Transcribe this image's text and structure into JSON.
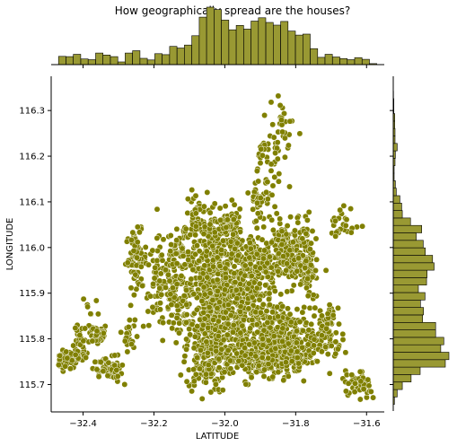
{
  "title": "How geographically spread are the houses?",
  "chart_data": {
    "type": "scatter",
    "title": "How geographically spread are the houses?",
    "xlabel": "LATITUDE",
    "ylabel": "LONGITUDE",
    "xlim": [
      -32.49,
      -31.55
    ],
    "ylim": [
      115.64,
      116.375
    ],
    "xticks": [
      -32.4,
      -32.2,
      -32.0,
      -31.8,
      -31.6
    ],
    "xtick_labels": [
      "−32.4",
      "−32.2",
      "−32.0",
      "−31.8",
      "−31.6"
    ],
    "yticks": [
      115.7,
      115.8,
      115.9,
      116.0,
      116.1,
      116.2,
      116.3
    ],
    "ytick_labels": [
      "115.7",
      "115.8",
      "115.9",
      "116.0",
      "116.1",
      "116.2",
      "116.3"
    ],
    "marker_color": "#808000",
    "marker_edge_color": "#ffffff",
    "bar_color": "#999933",
    "grid": false,
    "marginal_histograms": true,
    "clusters": [
      {
        "lat": -32.45,
        "lon": 115.755,
        "spread_lat": 0.02,
        "spread_lon": 0.01,
        "n": 70
      },
      {
        "lat": -32.41,
        "lon": 115.78,
        "spread_lat": 0.01,
        "spread_lon": 0.02,
        "n": 35
      },
      {
        "lat": -32.38,
        "lon": 115.86,
        "spread_lat": 0.012,
        "spread_lon": 0.025,
        "n": 10
      },
      {
        "lat": -32.36,
        "lon": 115.81,
        "spread_lat": 0.015,
        "spread_lon": 0.012,
        "n": 40
      },
      {
        "lat": -32.34,
        "lon": 115.745,
        "spread_lat": 0.015,
        "spread_lon": 0.012,
        "n": 35
      },
      {
        "lat": -32.31,
        "lon": 115.73,
        "spread_lat": 0.01,
        "spread_lon": 0.015,
        "n": 30
      },
      {
        "lat": -32.27,
        "lon": 115.81,
        "spread_lat": 0.008,
        "spread_lon": 0.018,
        "n": 25
      },
      {
        "lat": -32.25,
        "lon": 115.975,
        "spread_lat": 0.015,
        "spread_lon": 0.03,
        "n": 70
      },
      {
        "lat": -32.18,
        "lon": 115.92,
        "spread_lat": 0.025,
        "spread_lon": 0.05,
        "n": 80
      },
      {
        "lat": -32.13,
        "lon": 115.86,
        "spread_lat": 0.02,
        "spread_lon": 0.025,
        "n": 50
      },
      {
        "lat": -32.12,
        "lon": 115.98,
        "spread_lat": 0.025,
        "spread_lon": 0.04,
        "n": 90
      },
      {
        "lat": -32.08,
        "lon": 116.07,
        "spread_lat": 0.015,
        "spread_lon": 0.025,
        "n": 40
      },
      {
        "lat": -32.05,
        "lon": 115.78,
        "spread_lat": 0.03,
        "spread_lon": 0.05,
        "n": 260
      },
      {
        "lat": -32.03,
        "lon": 115.9,
        "spread_lat": 0.035,
        "spread_lon": 0.05,
        "n": 240
      },
      {
        "lat": -32.02,
        "lon": 116.0,
        "spread_lat": 0.035,
        "spread_lon": 0.04,
        "n": 160
      },
      {
        "lat": -31.99,
        "lon": 116.05,
        "spread_lat": 0.02,
        "spread_lon": 0.015,
        "n": 60
      },
      {
        "lat": -31.95,
        "lon": 115.87,
        "spread_lat": 0.04,
        "spread_lon": 0.05,
        "n": 260
      },
      {
        "lat": -31.92,
        "lon": 115.76,
        "spread_lat": 0.04,
        "spread_lon": 0.025,
        "n": 170
      },
      {
        "lat": -31.91,
        "lon": 115.97,
        "spread_lat": 0.035,
        "spread_lon": 0.03,
        "n": 120
      },
      {
        "lat": -31.9,
        "lon": 116.11,
        "spread_lat": 0.015,
        "spread_lon": 0.025,
        "n": 45
      },
      {
        "lat": -31.86,
        "lon": 115.82,
        "spread_lat": 0.03,
        "spread_lon": 0.03,
        "n": 120
      },
      {
        "lat": -31.84,
        "lon": 115.76,
        "spread_lat": 0.035,
        "spread_lon": 0.02,
        "n": 150
      },
      {
        "lat": -31.83,
        "lon": 115.99,
        "spread_lat": 0.035,
        "spread_lon": 0.04,
        "n": 160
      },
      {
        "lat": -31.77,
        "lon": 115.97,
        "spread_lat": 0.012,
        "spread_lon": 0.045,
        "n": 90
      },
      {
        "lat": -31.78,
        "lon": 115.8,
        "spread_lat": 0.03,
        "spread_lon": 0.03,
        "n": 90
      },
      {
        "lat": -31.72,
        "lon": 115.8,
        "spread_lat": 0.025,
        "spread_lon": 0.025,
        "n": 60
      },
      {
        "lat": -31.71,
        "lon": 115.85,
        "spread_lat": 0.012,
        "spread_lon": 0.02,
        "n": 20
      },
      {
        "lat": -31.88,
        "lon": 116.2,
        "spread_lat": 0.02,
        "spread_lon": 0.03,
        "n": 35
      },
      {
        "lat": -31.84,
        "lon": 116.27,
        "spread_lat": 0.02,
        "spread_lon": 0.035,
        "n": 25
      },
      {
        "lat": -31.66,
        "lon": 116.05,
        "spread_lat": 0.02,
        "spread_lon": 0.02,
        "n": 25
      },
      {
        "lat": -31.63,
        "lon": 115.705,
        "spread_lat": 0.02,
        "spread_lon": 0.012,
        "n": 45
      },
      {
        "lat": -31.6,
        "lon": 115.685,
        "spread_lat": 0.008,
        "spread_lon": 0.01,
        "n": 10
      }
    ]
  }
}
